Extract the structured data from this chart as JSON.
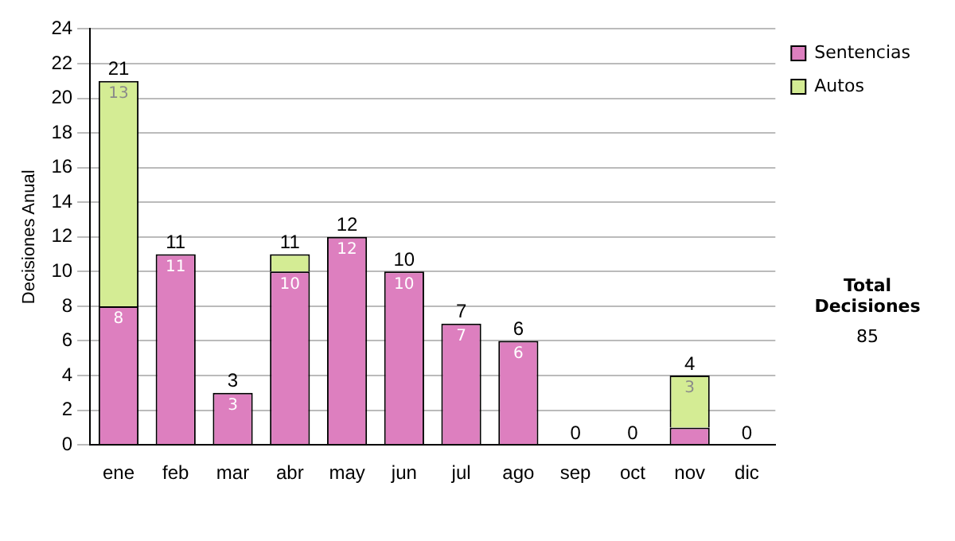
{
  "chart_data": {
    "type": "bar",
    "stacked": true,
    "ylabel": "Decisiones Anual",
    "categories": [
      "ene",
      "feb",
      "mar",
      "abr",
      "may",
      "jun",
      "jul",
      "ago",
      "sep",
      "oct",
      "nov",
      "dic"
    ],
    "series": [
      {
        "name": "Sentencias",
        "color": "#dd7fbf",
        "values": [
          8,
          11,
          3,
          10,
          12,
          10,
          7,
          6,
          0,
          0,
          1,
          0
        ],
        "value_labels": [
          "8",
          "11",
          "3",
          "10",
          "12",
          "10",
          "7",
          "6",
          null,
          null,
          null,
          null
        ]
      },
      {
        "name": "Autos",
        "color": "#d4ec94",
        "values": [
          13,
          0,
          0,
          1,
          0,
          0,
          0,
          0,
          0,
          0,
          3,
          0
        ],
        "value_labels": [
          "13",
          null,
          null,
          null,
          null,
          null,
          null,
          null,
          null,
          null,
          "3",
          null
        ]
      }
    ],
    "totals": [
      "21",
      "11",
      "3",
      "11",
      "12",
      "10",
      "7",
      "6",
      "0",
      "0",
      "4",
      "0"
    ],
    "ylim": [
      0,
      24
    ],
    "yticks": [
      0,
      2,
      4,
      6,
      8,
      10,
      12,
      14,
      16,
      18,
      20,
      22,
      24
    ],
    "grid": "y",
    "legend": "right",
    "annotations": [
      "Total Decisiones",
      "85"
    ]
  }
}
